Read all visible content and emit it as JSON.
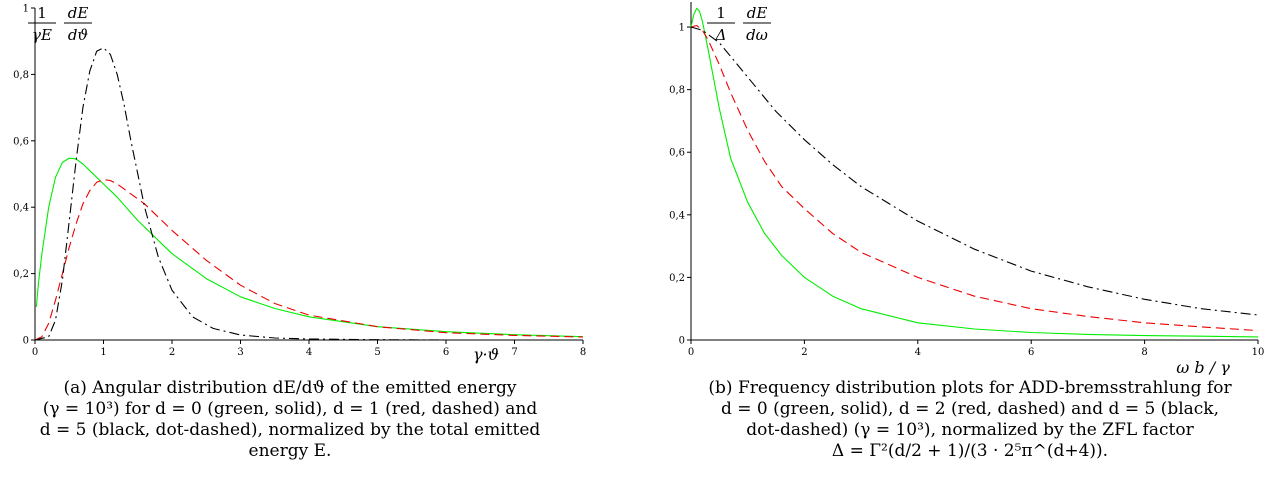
{
  "chart_data": [
    {
      "type": "line",
      "xlim": [
        0,
        8
      ],
      "ylim": [
        0,
        1
      ],
      "x_ticks": [
        "0",
        "1",
        "2",
        "3",
        "4",
        "5",
        "6",
        "7",
        "8"
      ],
      "y_ticks": [
        "0",
        "0,2",
        "0,4",
        "0,6",
        "0,8",
        "1"
      ],
      "ylabel": {
        "num_left": "1",
        "den_left": "γE",
        "num_right": "dE",
        "den_right": "dϑ"
      },
      "xlabel": "γ·ϑ",
      "grid": false,
      "series": [
        {
          "color": "#00ee00",
          "style": "solid",
          "x": [
            0.02,
            0.05,
            0.1,
            0.2,
            0.3,
            0.4,
            0.5,
            0.6,
            0.7,
            0.8,
            1.0,
            1.2,
            1.5,
            2.0,
            2.5,
            3.0,
            3.5,
            4.0,
            5.0,
            6.0,
            7.0,
            8.0
          ],
          "y": [
            0.1,
            0.17,
            0.26,
            0.4,
            0.49,
            0.535,
            0.548,
            0.545,
            0.53,
            0.51,
            0.47,
            0.43,
            0.36,
            0.26,
            0.185,
            0.13,
            0.095,
            0.07,
            0.04,
            0.025,
            0.016,
            0.01
          ]
        },
        {
          "color": "#ee0000",
          "style": "dashed",
          "x": [
            0.0,
            0.1,
            0.2,
            0.3,
            0.4,
            0.5,
            0.6,
            0.7,
            0.8,
            0.9,
            1.0,
            1.1,
            1.2,
            1.4,
            1.6,
            1.8,
            2.0,
            2.5,
            3.0,
            3.5,
            4.0,
            5.0,
            6.0,
            7.0,
            8.0
          ],
          "y": [
            0.0,
            0.01,
            0.05,
            0.12,
            0.2,
            0.28,
            0.35,
            0.41,
            0.45,
            0.475,
            0.483,
            0.48,
            0.47,
            0.44,
            0.41,
            0.37,
            0.33,
            0.24,
            0.165,
            0.11,
            0.075,
            0.04,
            0.022,
            0.014,
            0.009
          ]
        },
        {
          "color": "#000000",
          "style": "dashdot",
          "x": [
            0.0,
            0.2,
            0.3,
            0.4,
            0.5,
            0.6,
            0.7,
            0.8,
            0.9,
            1.0,
            1.1,
            1.2,
            1.3,
            1.4,
            1.5,
            1.6,
            1.8,
            2.0,
            2.3,
            2.6,
            3.0,
            3.5,
            4.0,
            5.0,
            6.0,
            8.0
          ],
          "y": [
            0.0,
            0.01,
            0.06,
            0.18,
            0.36,
            0.54,
            0.7,
            0.81,
            0.87,
            0.88,
            0.86,
            0.8,
            0.71,
            0.6,
            0.5,
            0.4,
            0.25,
            0.15,
            0.07,
            0.035,
            0.015,
            0.006,
            0.003,
            0.001,
            0.0,
            0.0
          ]
        }
      ]
    },
    {
      "type": "line",
      "xlim": [
        0,
        10
      ],
      "ylim": [
        0,
        1.08
      ],
      "x_ticks": [
        "0",
        "2",
        "4",
        "6",
        "8",
        "10"
      ],
      "y_ticks": [
        "0",
        "0,2",
        "0,4",
        "0,6",
        "0,8",
        "1"
      ],
      "ylabel": {
        "num_left": "1",
        "den_left": "Δ",
        "num_right": "dE",
        "den_right": "dω"
      },
      "xlabel": "ω b / γ",
      "grid": false,
      "series": [
        {
          "color": "#00ee00",
          "style": "solid",
          "x": [
            0.0,
            0.05,
            0.1,
            0.15,
            0.2,
            0.3,
            0.5,
            0.7,
            1.0,
            1.3,
            1.6,
            2.0,
            2.5,
            3.0,
            4.0,
            5.0,
            6.0,
            7.0,
            8.0,
            9.0,
            10.0
          ],
          "y": [
            1.0,
            1.04,
            1.06,
            1.05,
            1.02,
            0.93,
            0.74,
            0.58,
            0.44,
            0.34,
            0.27,
            0.2,
            0.14,
            0.1,
            0.055,
            0.035,
            0.024,
            0.018,
            0.014,
            0.012,
            0.01
          ]
        },
        {
          "color": "#ee0000",
          "style": "dashed",
          "x": [
            0.0,
            0.1,
            0.2,
            0.3,
            0.5,
            0.7,
            1.0,
            1.3,
            1.6,
            2.0,
            2.5,
            3.0,
            4.0,
            5.0,
            6.0,
            7.0,
            8.0,
            9.0,
            10.0
          ],
          "y": [
            1.0,
            1.005,
            0.99,
            0.96,
            0.88,
            0.79,
            0.67,
            0.57,
            0.49,
            0.42,
            0.34,
            0.28,
            0.2,
            0.14,
            0.1,
            0.075,
            0.055,
            0.042,
            0.03
          ]
        },
        {
          "color": "#000000",
          "style": "dashdot",
          "x": [
            0.0,
            0.2,
            0.5,
            1.0,
            1.5,
            2.0,
            2.5,
            3.0,
            4.0,
            5.0,
            6.0,
            7.0,
            8.0,
            9.0,
            10.0
          ],
          "y": [
            1.0,
            0.99,
            0.95,
            0.84,
            0.73,
            0.64,
            0.56,
            0.49,
            0.38,
            0.29,
            0.22,
            0.17,
            0.13,
            0.1,
            0.08
          ]
        }
      ]
    }
  ],
  "captions": {
    "a": {
      "label": "(a)",
      "lines": [
        "Angular distribution dE/dϑ of the emitted energy",
        "(γ = 10³) for d = 0 (green, solid), d = 1 (red, dashed) and",
        "d = 5 (black, dot-dashed), normalized by the total emitted",
        "energy E."
      ]
    },
    "b": {
      "label": "(b)",
      "lines": [
        "Frequency distribution plots for ADD-bremsstrahlung for",
        "d = 0 (green, solid), d = 2 (red, dashed) and d = 5 (black,",
        "dot-dashed) (γ = 10³), normalized by the ZFL factor",
        "Δ = Γ²(d/2 + 1)/(3 · 2⁵π^(d+4))."
      ]
    }
  }
}
